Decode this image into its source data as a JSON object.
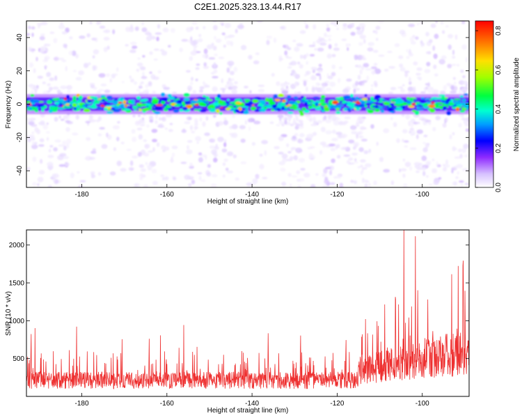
{
  "title": "C2E1.2025.323.13.44.R17",
  "chart_data": [
    {
      "type": "heatmap",
      "title": "C2E1.2025.323.13.44.R17",
      "xlabel": "Height of straight line (km)",
      "ylabel": "Frequency (Hz)",
      "xlim": [
        -193,
        -89
      ],
      "ylim": [
        -50,
        50
      ],
      "xticks": [
        -180,
        -160,
        -140,
        -120,
        -100
      ],
      "yticks": [
        -40,
        -20,
        0,
        20,
        40
      ],
      "colorbar": {
        "label": "Normalized spectral amplitude",
        "range": [
          0.0,
          0.85
        ],
        "ticks": [
          0.0,
          0.2,
          0.4,
          0.6,
          0.8
        ],
        "colormap": [
          "#ffffff",
          "#b48cff",
          "#7f00ff",
          "#0000ff",
          "#00c8ff",
          "#00ff80",
          "#80ff00",
          "#ffcc00",
          "#ff0000"
        ]
      },
      "band": {
        "center_frequency_hz": 0,
        "half_width_hz": 5,
        "peak_amplitude": 0.85
      }
    },
    {
      "type": "line",
      "xlabel": "Height of straight line (km)",
      "ylabel": "SNR (10 * v/v)",
      "xlim": [
        -193,
        -89
      ],
      "ylim": [
        0,
        2200
      ],
      "xticks": [
        -180,
        -160,
        -140,
        -120,
        -100
      ],
      "yticks": [
        500,
        1000,
        1500,
        2000
      ],
      "color": "#ee3030",
      "segments": [
        {
          "x_range": [
            -193,
            -115
          ],
          "baseline": 250,
          "typical_peak": 600,
          "max_peak": 950
        },
        {
          "x_range": [
            -115,
            -89
          ],
          "baseline": 500,
          "typical_peak": 1300,
          "max_peak": 2200
        }
      ]
    }
  ]
}
